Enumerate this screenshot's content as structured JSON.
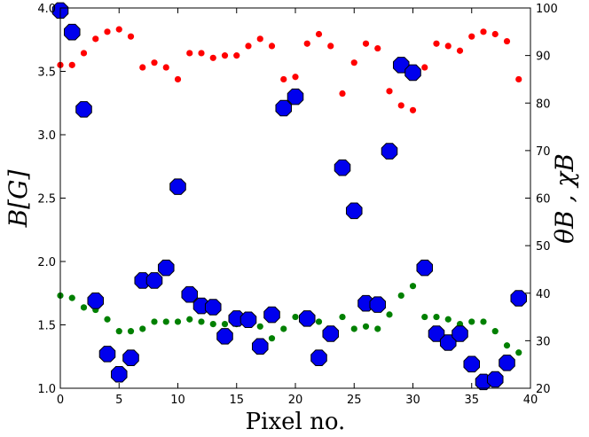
{
  "chart_data": {
    "type": "scatter",
    "xlabel": "Pixel no.",
    "ylabel_left": "B[G]",
    "ylabel_right": "θB , χB",
    "xlim": [
      0,
      40
    ],
    "ylim_left": [
      1.0,
      4.0
    ],
    "ylim_right": [
      20,
      100
    ],
    "grid": false,
    "x_ticks": [
      0,
      5,
      10,
      15,
      20,
      25,
      30,
      35,
      40
    ],
    "y_left_ticks": [
      "1.0",
      "1.5",
      "2.0",
      "2.5",
      "3.0",
      "3.5",
      "4.0"
    ],
    "y_right_ticks": [
      "20",
      "30",
      "40",
      "50",
      "60",
      "70",
      "80",
      "90",
      "100"
    ],
    "series": [
      {
        "axis": "left",
        "color": "#0000ee",
        "marker": "octagon",
        "points": [
          [
            0,
            3.98
          ],
          [
            1,
            3.81
          ],
          [
            2,
            3.2
          ],
          [
            3,
            1.69
          ],
          [
            4,
            1.27
          ],
          [
            5,
            1.11
          ],
          [
            6,
            1.24
          ],
          [
            7,
            1.85
          ],
          [
            8,
            1.85
          ],
          [
            9,
            1.95
          ],
          [
            10,
            2.59
          ],
          [
            11,
            1.74
          ],
          [
            12,
            1.65
          ],
          [
            13,
            1.64
          ],
          [
            14,
            1.41
          ],
          [
            15,
            1.55
          ],
          [
            16,
            1.54
          ],
          [
            17,
            1.33
          ],
          [
            18,
            1.58
          ],
          [
            19,
            3.21
          ],
          [
            20,
            3.3
          ],
          [
            21,
            1.55
          ],
          [
            22,
            1.24
          ],
          [
            23,
            1.43
          ],
          [
            24,
            2.74
          ],
          [
            25,
            2.4
          ],
          [
            26,
            1.67
          ],
          [
            27,
            1.66
          ],
          [
            28,
            2.87
          ],
          [
            29,
            3.55
          ],
          [
            30,
            3.49
          ],
          [
            31,
            1.95
          ],
          [
            32,
            1.43
          ],
          [
            33,
            1.36
          ],
          [
            34,
            1.43
          ],
          [
            35,
            1.19
          ],
          [
            36,
            1.05
          ],
          [
            37,
            1.07
          ],
          [
            38,
            1.2
          ],
          [
            39,
            1.71
          ]
        ]
      },
      {
        "axis": "right",
        "color": "#ff0000",
        "marker": "dot",
        "points": [
          [
            0,
            88.0
          ],
          [
            1,
            88.0
          ],
          [
            2,
            90.5
          ],
          [
            3,
            93.5
          ],
          [
            4,
            95.0
          ],
          [
            5,
            95.5
          ],
          [
            6,
            94.0
          ],
          [
            7,
            87.5
          ],
          [
            8,
            88.5
          ],
          [
            9,
            87.5
          ],
          [
            10,
            85.0
          ],
          [
            11,
            90.5
          ],
          [
            12,
            90.5
          ],
          [
            13,
            89.5
          ],
          [
            14,
            90.0
          ],
          [
            15,
            90.0
          ],
          [
            16,
            92.0
          ],
          [
            17,
            93.5
          ],
          [
            18,
            92.0
          ],
          [
            19,
            85.0
          ],
          [
            20,
            85.5
          ],
          [
            21,
            92.5
          ],
          [
            22,
            94.5
          ],
          [
            23,
            92.0
          ],
          [
            24,
            82.0
          ],
          [
            25,
            88.5
          ],
          [
            26,
            92.5
          ],
          [
            27,
            91.5
          ],
          [
            28,
            82.5
          ],
          [
            29,
            79.5
          ],
          [
            30,
            78.5
          ],
          [
            31,
            87.5
          ],
          [
            32,
            92.5
          ],
          [
            33,
            92.0
          ],
          [
            34,
            91.0
          ],
          [
            35,
            94.0
          ],
          [
            36,
            95.0
          ],
          [
            37,
            94.5
          ],
          [
            38,
            93.0
          ],
          [
            39,
            85.0
          ]
        ]
      },
      {
        "axis": "right",
        "color": "#008000",
        "marker": "dot",
        "points": [
          [
            0,
            39.5
          ],
          [
            1,
            39.0
          ],
          [
            2,
            37.0
          ],
          [
            3,
            36.5
          ],
          [
            4,
            34.5
          ],
          [
            5,
            32.0
          ],
          [
            6,
            32.0
          ],
          [
            7,
            32.5
          ],
          [
            8,
            34.0
          ],
          [
            9,
            34.0
          ],
          [
            10,
            34.0
          ],
          [
            11,
            34.5
          ],
          [
            12,
            34.0
          ],
          [
            13,
            33.5
          ],
          [
            14,
            33.5
          ],
          [
            15,
            33.5
          ],
          [
            16,
            34.0
          ],
          [
            17,
            33.0
          ],
          [
            18,
            30.5
          ],
          [
            19,
            32.5
          ],
          [
            20,
            35.0
          ],
          [
            21,
            35.0
          ],
          [
            22,
            34.0
          ],
          [
            23,
            32.5
          ],
          [
            24,
            35.0
          ],
          [
            25,
            32.5
          ],
          [
            26,
            33.0
          ],
          [
            27,
            32.5
          ],
          [
            28,
            35.5
          ],
          [
            29,
            39.5
          ],
          [
            30,
            41.5
          ],
          [
            31,
            35.0
          ],
          [
            32,
            35.0
          ],
          [
            33,
            34.5
          ],
          [
            34,
            33.5
          ],
          [
            35,
            34.0
          ],
          [
            36,
            34.0
          ],
          [
            37,
            32.0
          ],
          [
            38,
            29.0
          ],
          [
            39,
            27.5
          ]
        ]
      }
    ]
  }
}
